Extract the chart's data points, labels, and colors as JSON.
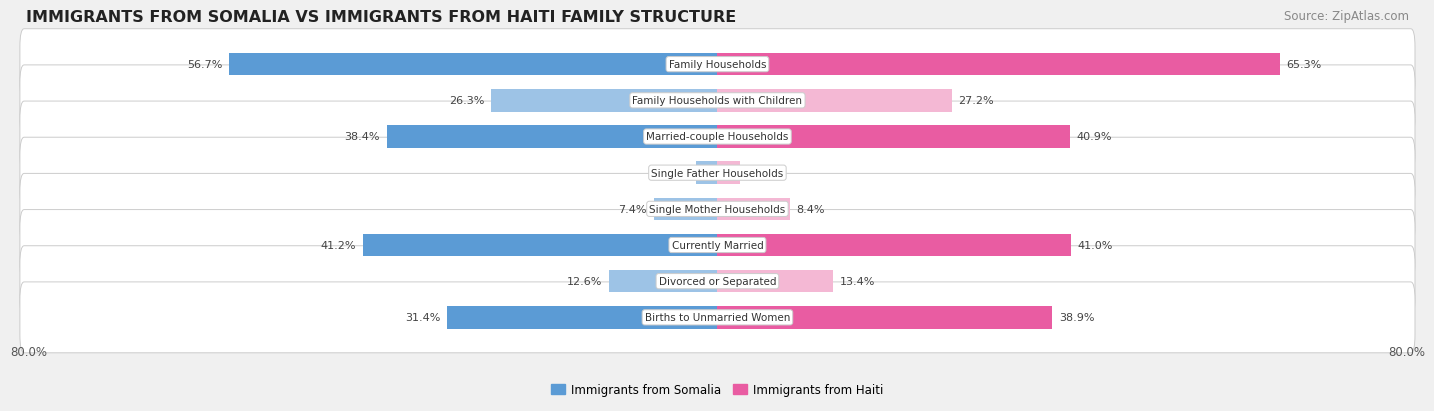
{
  "title": "IMMIGRANTS FROM SOMALIA VS IMMIGRANTS FROM HAITI FAMILY STRUCTURE",
  "source": "Source: ZipAtlas.com",
  "categories": [
    "Family Households",
    "Family Households with Children",
    "Married-couple Households",
    "Single Father Households",
    "Single Mother Households",
    "Currently Married",
    "Divorced or Separated",
    "Births to Unmarried Women"
  ],
  "somalia_values": [
    56.7,
    26.3,
    38.4,
    2.5,
    7.4,
    41.2,
    12.6,
    31.4
  ],
  "haiti_values": [
    65.3,
    27.2,
    40.9,
    2.6,
    8.4,
    41.0,
    13.4,
    38.9
  ],
  "somalia_colors": [
    "#5b9bd5",
    "#9dc3e6",
    "#5b9bd5",
    "#9dc3e6",
    "#9dc3e6",
    "#5b9bd5",
    "#9dc3e6",
    "#5b9bd5"
  ],
  "haiti_colors": [
    "#e95ca2",
    "#f4b8d4",
    "#e95ca2",
    "#f4b8d4",
    "#f4b8d4",
    "#e95ca2",
    "#f4b8d4",
    "#e95ca2"
  ],
  "axis_max": 80.0,
  "axis_label_left": "80.0%",
  "axis_label_right": "80.0%",
  "bg_color": "#f0f0f0",
  "bar_bg_color": "#ffffff",
  "title_fontsize": 11.5,
  "source_fontsize": 8.5,
  "legend_somalia": "Immigrants from Somalia",
  "legend_haiti": "Immigrants from Haiti",
  "label_threshold": 15,
  "value_label_fontsize": 8,
  "category_fontsize": 7.5,
  "bar_height": 0.62
}
